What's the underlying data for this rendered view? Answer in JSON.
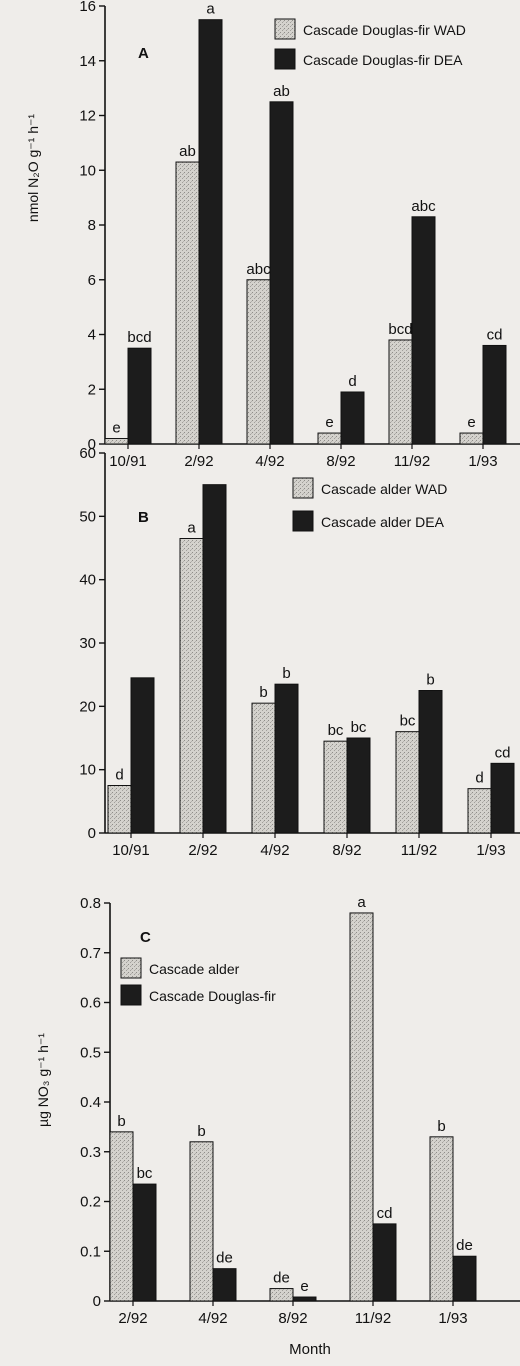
{
  "colors": {
    "background": "#efedea",
    "light_bar": "#d4d2cd",
    "dark_bar": "#1c1c1c",
    "axis": "#111111"
  },
  "chart_data": [
    {
      "type": "bar",
      "panel": "A",
      "ylabel": "nmol N₂O g⁻¹ h⁻¹",
      "ylim": [
        0,
        16
      ],
      "yticks": [
        0,
        2,
        4,
        6,
        8,
        10,
        12,
        14,
        16
      ],
      "categories": [
        "10/91",
        "2/92",
        "4/92",
        "8/92",
        "11/92",
        "1/93"
      ],
      "legend_position": "top-right",
      "series": [
        {
          "name": "Cascade Douglas-fir WAD",
          "style": "light",
          "values": [
            0.2,
            10.3,
            6.0,
            0.4,
            3.8,
            0.4
          ],
          "labels": [
            "e",
            "ab",
            "abc",
            "e",
            "bcd",
            "e"
          ]
        },
        {
          "name": "Cascade Douglas-fir DEA",
          "style": "dark",
          "values": [
            3.5,
            15.5,
            12.5,
            1.9,
            8.3,
            3.6
          ],
          "labels": [
            "bcd",
            "a",
            "ab",
            "d",
            "abc",
            "cd"
          ]
        }
      ]
    },
    {
      "type": "bar",
      "panel": "B",
      "ylabel": "",
      "ylim": [
        0,
        60
      ],
      "yticks": [
        0,
        10,
        20,
        30,
        40,
        50,
        60
      ],
      "categories": [
        "10/91",
        "2/92",
        "4/92",
        "8/92",
        "11/92",
        "1/93"
      ],
      "legend_position": "top-right",
      "series": [
        {
          "name": "Cascade alder WAD",
          "style": "light",
          "values": [
            7.5,
            46.5,
            20.5,
            14.5,
            16.0,
            7.0
          ],
          "labels": [
            "d",
            "a",
            "b",
            "bc",
            "bc",
            "d"
          ]
        },
        {
          "name": "Cascade alder DEA",
          "style": "dark",
          "values": [
            24.5,
            55.0,
            23.5,
            15.0,
            22.5,
            11.0
          ],
          "labels": [
            "",
            "",
            "b",
            "bc",
            "b",
            "cd"
          ]
        }
      ]
    },
    {
      "type": "bar",
      "panel": "C",
      "ylabel": "µg NO₃ g⁻¹ h⁻¹",
      "xlabel": "Month",
      "ylim": [
        0,
        0.8
      ],
      "yticks": [
        "0",
        "0.1",
        "0.2",
        "0.3",
        "0.4",
        "0.5",
        "0.6",
        "0.7",
        "0.8"
      ],
      "categories": [
        "2/92",
        "4/92",
        "8/92",
        "11/92",
        "1/93"
      ],
      "legend_position": "top-left",
      "series": [
        {
          "name": "Cascade alder",
          "style": "light",
          "values": [
            0.34,
            0.32,
            0.025,
            0.78,
            0.33
          ],
          "labels": [
            "b",
            "b",
            "de",
            "a",
            "b"
          ]
        },
        {
          "name": "Cascade Douglas-fir",
          "style": "dark",
          "values": [
            0.235,
            0.065,
            0.008,
            0.155,
            0.09
          ],
          "labels": [
            "bc",
            "de",
            "e",
            "cd",
            "de"
          ]
        }
      ]
    }
  ]
}
